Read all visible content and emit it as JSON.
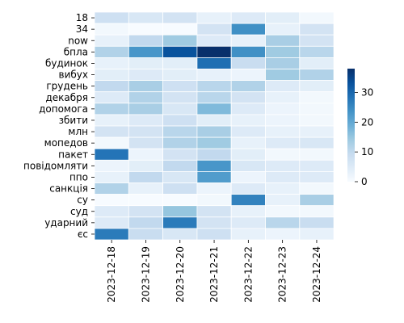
{
  "chart_data": {
    "type": "heatmap",
    "x": [
      "2023-12-18",
      "2023-12-19",
      "2023-12-20",
      "2023-12-21",
      "2023-12-22",
      "2023-12-23",
      "2023-12-24"
    ],
    "y": [
      "18",
      "34",
      "now",
      "бпла",
      "будинок",
      "вибух",
      "грудень",
      "декабря",
      "допомога",
      "збити",
      "млн",
      "мопедов",
      "пакет",
      "повідомляти",
      "ппо",
      "санкція",
      "су",
      "суд",
      "ударний",
      "єс"
    ],
    "values": [
      [
        8,
        6,
        7,
        3,
        5,
        4,
        1
      ],
      [
        1,
        0,
        0,
        7,
        24,
        3,
        7
      ],
      [
        3,
        10,
        14,
        5,
        3,
        13,
        7
      ],
      [
        12,
        23,
        33,
        38,
        24,
        14,
        11
      ],
      [
        3,
        4,
        4,
        29,
        9,
        13,
        4
      ],
      [
        4,
        5,
        4,
        3,
        2,
        14,
        12
      ],
      [
        10,
        13,
        8,
        11,
        12,
        5,
        4
      ],
      [
        5,
        12,
        7,
        11,
        7,
        3,
        1
      ],
      [
        12,
        13,
        6,
        17,
        5,
        2,
        1
      ],
      [
        3,
        5,
        8,
        4,
        3,
        2,
        1
      ],
      [
        7,
        7,
        11,
        13,
        5,
        3,
        3
      ],
      [
        1,
        7,
        12,
        14,
        3,
        5,
        6
      ],
      [
        28,
        2,
        7,
        10,
        4,
        1,
        1
      ],
      [
        2,
        4,
        10,
        23,
        6,
        5,
        5
      ],
      [
        3,
        10,
        6,
        22,
        2,
        5,
        5
      ],
      [
        12,
        3,
        8,
        2,
        5,
        3,
        1
      ],
      [
        0,
        0,
        0,
        1,
        26,
        3,
        13
      ],
      [
        5,
        7,
        15,
        7,
        3,
        1,
        1
      ],
      [
        5,
        10,
        27,
        7,
        5,
        11,
        9
      ],
      [
        27,
        9,
        6,
        8,
        3,
        2,
        3
      ]
    ],
    "colorbar": {
      "min": 0,
      "max": 38,
      "ticks": [
        0,
        10,
        20,
        30
      ],
      "colormap": "Blues"
    },
    "title": "",
    "xlabel": "",
    "ylabel": ""
  }
}
